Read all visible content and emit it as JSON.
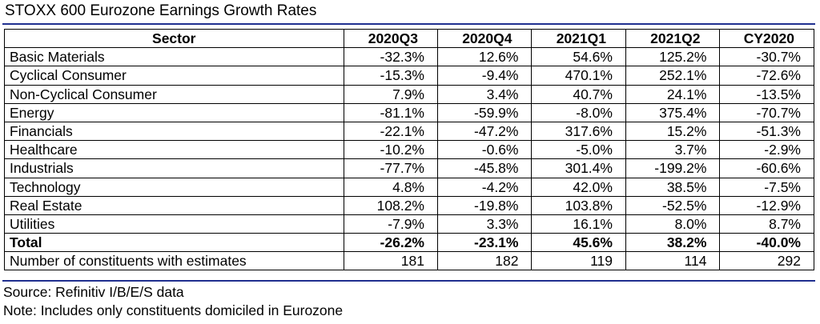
{
  "title": "STOXX 600 Eurozone Earnings Growth Rates",
  "colors": {
    "rule": "#1f2f8f"
  },
  "table": {
    "headers": [
      "Sector",
      "2020Q3",
      "2020Q4",
      "2021Q1",
      "2021Q2",
      "CY2020"
    ],
    "rows": [
      {
        "sector": "Basic Materials",
        "values": [
          "-32.3%",
          "12.6%",
          "54.6%",
          "125.2%",
          "-30.7%"
        ]
      },
      {
        "sector": "Cyclical Consumer",
        "values": [
          "-15.3%",
          "-9.4%",
          "470.1%",
          "252.1%",
          "-72.6%"
        ]
      },
      {
        "sector": "Non-Cyclical Consumer",
        "values": [
          "7.9%",
          "3.4%",
          "40.7%",
          "24.1%",
          "-13.5%"
        ]
      },
      {
        "sector": "Energy",
        "values": [
          "-81.1%",
          "-59.9%",
          "-8.0%",
          "375.4%",
          "-70.7%"
        ]
      },
      {
        "sector": "Financials",
        "values": [
          "-22.1%",
          "-47.2%",
          "317.6%",
          "15.2%",
          "-51.3%"
        ]
      },
      {
        "sector": "Healthcare",
        "values": [
          "-10.2%",
          "-0.6%",
          "-5.0%",
          "3.7%",
          "-2.9%"
        ]
      },
      {
        "sector": "Industrials",
        "values": [
          "-77.7%",
          "-45.8%",
          "301.4%",
          "-199.2%",
          "-60.6%"
        ]
      },
      {
        "sector": "Technology",
        "values": [
          "4.8%",
          "-4.2%",
          "42.0%",
          "38.5%",
          "-7.5%"
        ]
      },
      {
        "sector": "Real Estate",
        "values": [
          "108.2%",
          "-19.8%",
          "103.8%",
          "-52.5%",
          "-12.9%"
        ]
      },
      {
        "sector": "Utilities",
        "values": [
          "-7.9%",
          "3.3%",
          "16.1%",
          "8.0%",
          "8.7%"
        ]
      },
      {
        "sector": "Total",
        "values": [
          "-26.2%",
          "-23.1%",
          "45.6%",
          "38.2%",
          "-40.0%"
        ]
      },
      {
        "sector": "Number of constituents with estimates",
        "values": [
          "181",
          "182",
          "119",
          "114",
          "292"
        ]
      }
    ]
  },
  "source": "Source: Refinitiv I/B/E/S data",
  "note": "Note: Includes only constituents domiciled in Eurozone"
}
